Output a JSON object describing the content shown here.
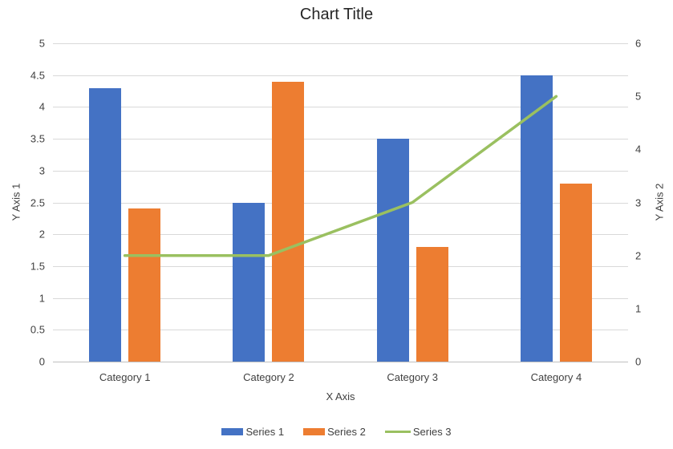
{
  "chart_data": {
    "type": "combo",
    "title": "Chart Title",
    "xlabel": "X Axis",
    "ylabel_left": "Y Axis 1",
    "ylabel_right": "Y Axis 2",
    "categories": [
      "Category 1",
      "Category 2",
      "Category 3",
      "Category 4"
    ],
    "series": [
      {
        "name": "Series 1",
        "type": "bar",
        "axis": "left",
        "color": "#4472C4",
        "values": [
          4.3,
          2.5,
          3.5,
          4.5
        ]
      },
      {
        "name": "Series 2",
        "type": "bar",
        "axis": "left",
        "color": "#ED7D31",
        "values": [
          2.4,
          4.4,
          1.8,
          2.8
        ]
      },
      {
        "name": "Series 3",
        "type": "line",
        "axis": "right",
        "color": "#9AC060",
        "values": [
          2,
          2,
          3,
          5
        ]
      }
    ],
    "axis_left": {
      "min": 0,
      "max": 5,
      "step": 0.5,
      "ticks": [
        "5",
        "4.5",
        "4",
        "3.5",
        "3",
        "2.5",
        "2",
        "1.5",
        "1",
        "0.5",
        "0"
      ]
    },
    "axis_right": {
      "min": 0,
      "max": 6,
      "step": 1,
      "ticks": [
        "6",
        "5",
        "4",
        "3",
        "2",
        "1",
        "0"
      ]
    },
    "legend_position": "bottom",
    "grid": true,
    "styles": {
      "gridline_color": "#D9D9D9",
      "axis_line_color": "#BFBFBF",
      "text_color": "#404040",
      "title_color": "#262626",
      "background": "#FFFFFF"
    }
  }
}
